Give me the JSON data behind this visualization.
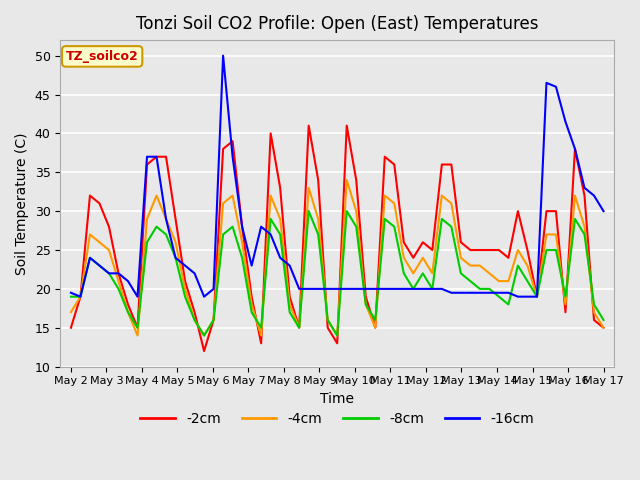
{
  "title": "Tonzi Soil CO2 Profile: Open (East) Temperatures",
  "xlabel": "Time",
  "ylabel": "Soil Temperature (C)",
  "ylim": [
    10,
    52
  ],
  "yticks": [
    10,
    15,
    20,
    25,
    30,
    35,
    40,
    45,
    50
  ],
  "colors": {
    "-2cm": "#ff0000",
    "-4cm": "#ff9900",
    "-8cm": "#00cc00",
    "-16cm": "#0000ff"
  },
  "legend_label": "TZ_soilco2",
  "series_labels": [
    "-2cm",
    "-4cm",
    "-8cm",
    "-16cm"
  ],
  "x_tick_labels": [
    "May 2",
    "May 3",
    "May 4",
    "May 5",
    "May 6",
    "May 7",
    "May 8",
    "May 9",
    "May 10",
    "May 11",
    "May 12",
    "May 13",
    "May 14",
    "May 15",
    "May 16",
    "May 17"
  ],
  "data": {
    "-2cm": [
      15,
      19,
      32,
      31,
      28,
      22,
      18,
      15,
      36,
      37,
      37,
      29,
      21,
      17,
      12,
      16,
      38,
      39,
      28,
      19,
      13,
      40,
      33,
      19,
      15,
      41,
      34,
      15,
      13,
      41,
      34,
      19,
      15,
      37,
      36,
      26,
      24,
      26,
      25,
      36,
      36,
      26,
      25,
      25,
      25,
      25,
      24,
      30,
      25,
      19,
      30,
      30,
      17,
      38,
      32,
      16,
      15
    ],
    "-4cm": [
      17,
      19,
      27,
      26,
      25,
      21,
      17,
      14,
      29,
      32,
      29,
      26,
      20,
      16,
      14,
      16,
      31,
      32,
      26,
      18,
      14,
      32,
      29,
      18,
      15,
      33,
      29,
      16,
      14,
      34,
      30,
      18,
      15,
      32,
      31,
      24,
      22,
      24,
      22,
      32,
      31,
      24,
      23,
      23,
      22,
      21,
      21,
      25,
      23,
      19,
      27,
      27,
      18,
      32,
      28,
      17,
      15
    ],
    "-8cm": [
      19,
      19,
      24,
      23,
      22,
      20,
      17,
      15,
      26,
      28,
      27,
      24,
      19,
      16,
      14,
      16,
      27,
      28,
      24,
      17,
      15,
      29,
      27,
      17,
      15,
      30,
      27,
      16,
      14,
      30,
      28,
      18,
      16,
      29,
      28,
      22,
      20,
      22,
      20,
      29,
      28,
      22,
      21,
      20,
      20,
      19,
      18,
      23,
      21,
      19,
      25,
      25,
      19,
      29,
      27,
      18,
      16
    ],
    "-16cm": [
      19.5,
      19,
      24,
      23,
      22,
      22,
      21,
      19,
      37,
      37,
      29,
      24,
      23,
      22,
      19,
      20,
      50,
      37,
      28,
      23,
      28,
      27,
      24,
      23,
      20,
      20,
      20,
      20,
      20,
      20,
      20,
      20,
      20,
      20,
      20,
      20,
      20,
      20,
      20,
      20,
      19.5,
      19.5,
      19.5,
      19.5,
      19.5,
      19.5,
      19.5,
      19,
      19,
      19,
      46.5,
      46,
      41.5,
      38,
      33,
      32,
      30
    ]
  },
  "background_color": "#e8e8e8",
  "plot_area_color": "#e8e8e8"
}
